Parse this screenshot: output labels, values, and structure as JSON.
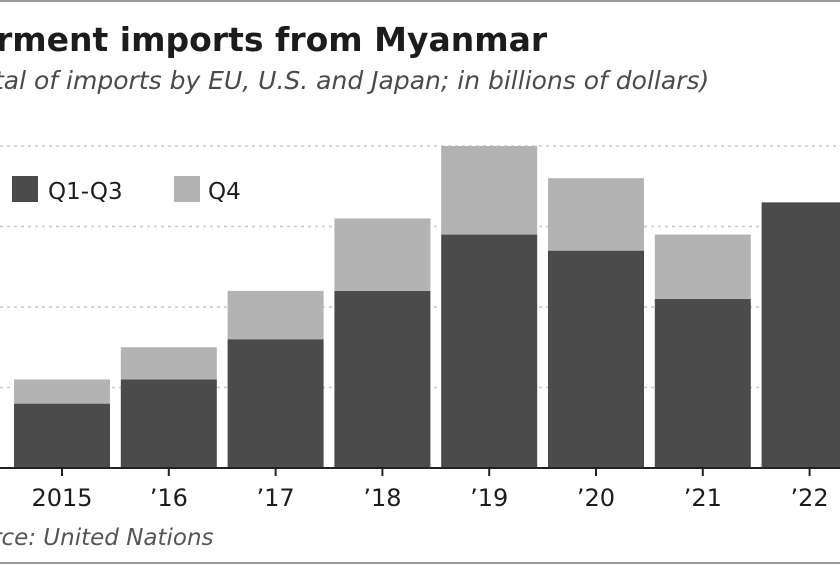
{
  "title": "rment imports from Myanmar",
  "subtitle": "tal of imports by EU, U.S. and Japan; in billions of dollars)",
  "source": "rce: United Nations",
  "colors": {
    "q1q3": "#4b4b4b",
    "q4": "#b3b3b3",
    "grid": "#c8c8c8",
    "axis": "#222222"
  },
  "chart_data": {
    "type": "bar",
    "stacked": true,
    "categories": [
      "2015",
      "’16",
      "’17",
      "’18",
      "’19",
      "’20",
      "’21",
      "’22"
    ],
    "series": [
      {
        "name": "Q1-Q3",
        "values": [
          0.8,
          1.1,
          1.6,
          2.2,
          2.9,
          2.7,
          2.1,
          3.3
        ]
      },
      {
        "name": "Q4",
        "values": [
          0.3,
          0.4,
          0.6,
          0.9,
          1.1,
          0.9,
          0.8,
          0.0
        ]
      }
    ],
    "ylim": [
      0,
      4
    ],
    "y_gridlines": [
      1,
      2,
      3,
      4
    ],
    "grid": true,
    "legend": "top-left"
  }
}
